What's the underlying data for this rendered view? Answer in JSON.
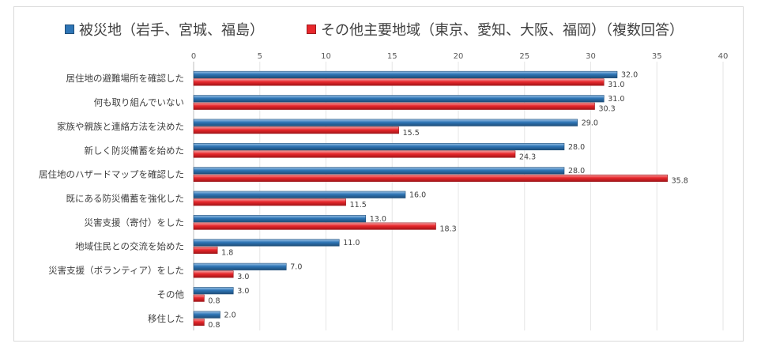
{
  "chart_data": {
    "type": "bar",
    "orientation": "horizontal",
    "legend_position": "top",
    "xlim": [
      0,
      40
    ],
    "xticks": [
      "0",
      "5",
      "10",
      "15",
      "20",
      "25",
      "30",
      "35",
      "40"
    ],
    "categories": [
      "居住地の避難場所を確認した",
      "何も取り組んでいない",
      "家族や親族と連絡方法を決めた",
      "新しく防災備蓄を始めた",
      "居住地のハザードマップを確認した",
      "既にある防災備蓄を強化した",
      "災害支援（寄付）をした",
      "地域住民との交流を始めた",
      "災害支援（ボランティア）をした",
      "その他",
      "移住した"
    ],
    "series": [
      {
        "name": "被災地（岩手、宮城、福島）",
        "color": "#2e75b6",
        "values": [
          32.0,
          31.0,
          29.0,
          28.0,
          28.0,
          16.0,
          13.0,
          11.0,
          7.0,
          3.0,
          2.0
        ],
        "labels": [
          "32.0",
          "31.0",
          "29.0",
          "28.0",
          "28.0",
          "16.0",
          "13.0",
          "11.0",
          "7.0",
          "3.0",
          "2.0"
        ]
      },
      {
        "name": "その他主要地域（東京、愛知、大阪、福岡）（複数回答）",
        "color": "#e8282c",
        "values": [
          31.0,
          30.3,
          15.5,
          24.3,
          35.8,
          11.5,
          18.3,
          1.8,
          3.0,
          0.8,
          0.8
        ],
        "labels": [
          "31.0",
          "30.3",
          "15.5",
          "24.3",
          "35.8",
          "11.5",
          "18.3",
          "1.8",
          "3.0",
          "0.8",
          "0.8"
        ]
      }
    ]
  }
}
